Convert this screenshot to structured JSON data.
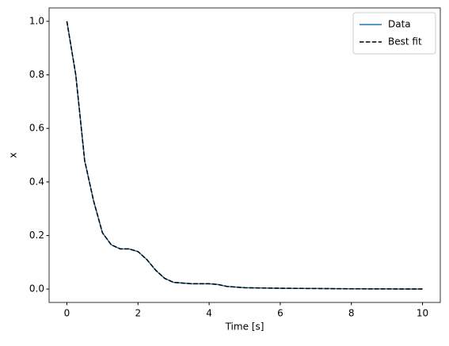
{
  "chart_data": {
    "type": "line",
    "xlabel": "Time [s]",
    "ylabel": "x",
    "x": [
      0,
      0.25,
      0.5,
      0.75,
      1.0,
      1.25,
      1.5,
      1.75,
      2.0,
      2.25,
      2.5,
      2.75,
      3.0,
      3.5,
      4.0,
      4.25,
      4.5,
      5.0,
      6.0,
      7.0,
      8.0,
      9.0,
      10.0
    ],
    "series": [
      {
        "name": "Data",
        "color": "#1f77b4",
        "linestyle": "solid",
        "values": [
          1.0,
          0.8,
          0.48,
          0.33,
          0.21,
          0.165,
          0.15,
          0.15,
          0.14,
          0.11,
          0.07,
          0.04,
          0.025,
          0.02,
          0.02,
          0.017,
          0.01,
          0.005,
          0.003,
          0.002,
          0.001,
          0.0005,
          0.0003
        ]
      },
      {
        "name": "Best fit",
        "color": "#000000",
        "linestyle": "dashed",
        "values": [
          1.0,
          0.8,
          0.48,
          0.33,
          0.21,
          0.165,
          0.15,
          0.15,
          0.14,
          0.11,
          0.07,
          0.04,
          0.025,
          0.02,
          0.02,
          0.017,
          0.01,
          0.005,
          0.003,
          0.002,
          0.001,
          0.0005,
          0.0003
        ]
      }
    ],
    "xlim": [
      -0.5,
      10.5
    ],
    "xticks": [
      0,
      2,
      4,
      6,
      8,
      10
    ],
    "ylim": [
      -0.05,
      1.05
    ],
    "yticks": [
      {
        "value": 0,
        "label": "0.0"
      },
      0.2,
      0.4,
      0.6,
      0.8,
      {
        "value": 1,
        "label": "1.0"
      }
    ],
    "legend": "upper right"
  }
}
